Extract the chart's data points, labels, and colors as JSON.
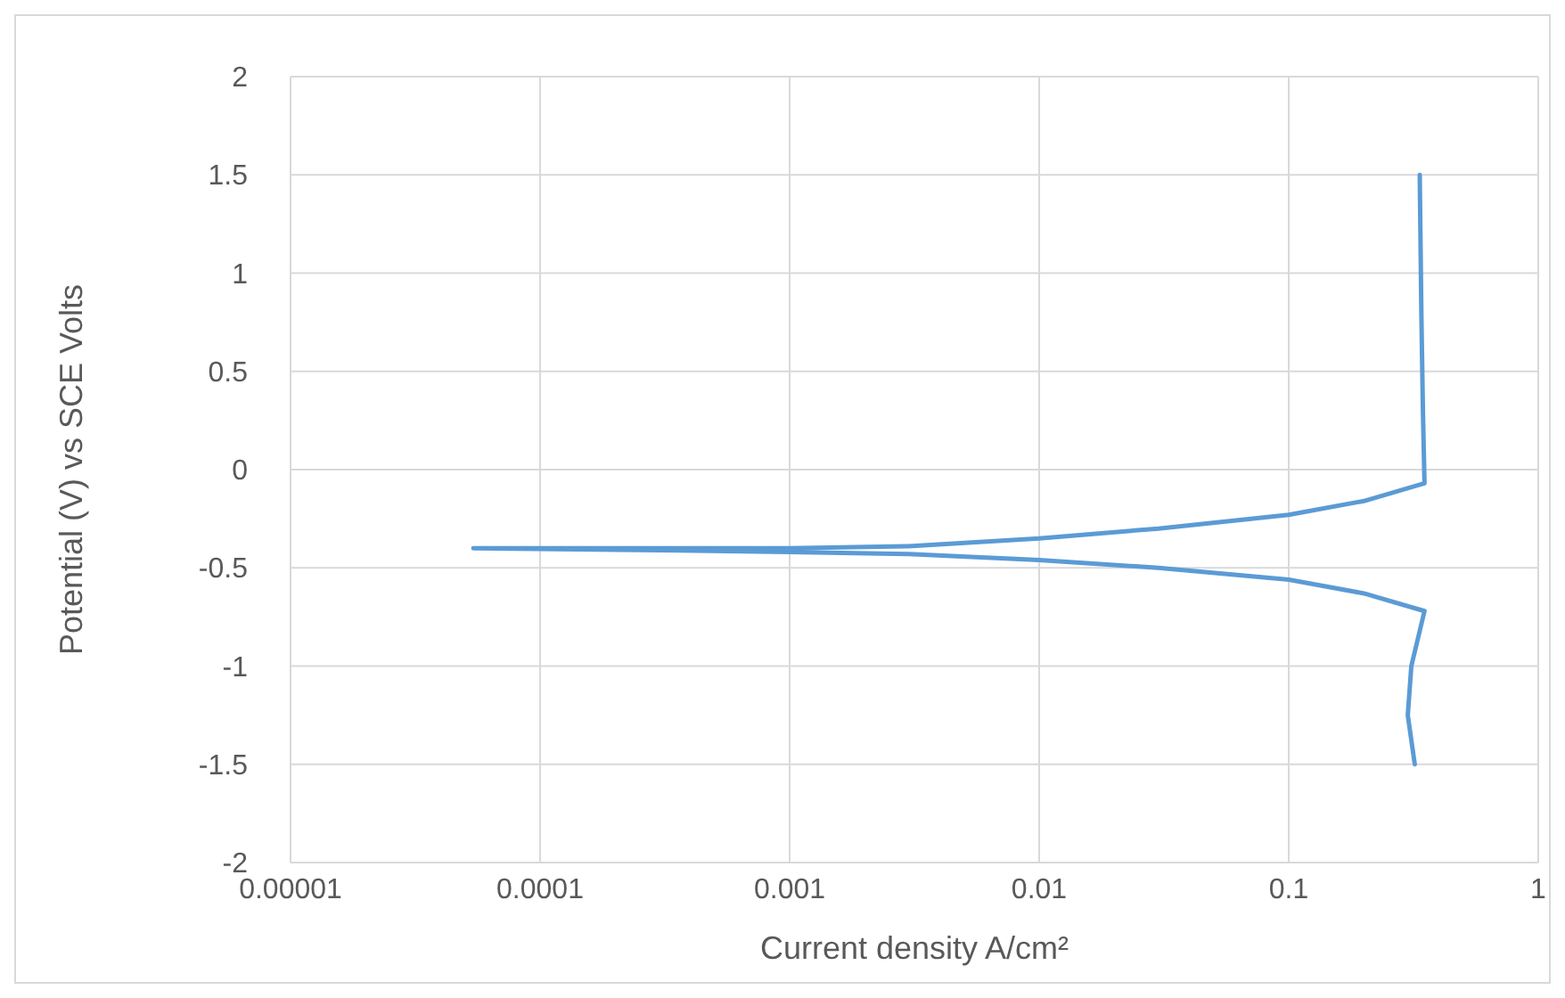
{
  "chart_data": {
    "type": "line",
    "xlabel": "Current  density A/cm²",
    "ylabel": "Potential (V) vs SCE Volts",
    "log": "x",
    "grid": true,
    "marker": "none",
    "line_style": "solid",
    "xlim": [
      1e-05,
      1
    ],
    "xticks": [
      {
        "value": 1e-05,
        "label": "0.00001"
      },
      {
        "value": 0.0001,
        "label": "0.0001"
      },
      {
        "value": 0.001,
        "label": "0.001"
      },
      {
        "value": 0.01,
        "label": "0.01"
      },
      {
        "value": 0.1,
        "label": "0.1"
      },
      1
    ],
    "ylim": [
      -2,
      2
    ],
    "yticks": [
      -2,
      -1.5,
      -1,
      -0.5,
      0,
      0.5,
      1,
      1.5,
      2
    ],
    "series": [
      {
        "color": "#5b9bd5",
        "x": [
          0.32,
          0.3,
          0.31,
          0.35,
          0.2,
          0.1,
          0.03,
          0.01,
          0.003,
          0.001,
          0.0003,
          5.4e-05,
          0.0003,
          0.001,
          0.003,
          0.01,
          0.03,
          0.1,
          0.2,
          0.35,
          0.345,
          0.34,
          0.335
        ],
        "values": [
          -1.5,
          -1.25,
          -1.0,
          -0.72,
          -0.63,
          -0.56,
          -0.5,
          -0.46,
          -0.43,
          -0.42,
          -0.41,
          -0.4,
          -0.4,
          -0.4,
          -0.39,
          -0.35,
          -0.3,
          -0.23,
          -0.16,
          -0.07,
          0.3,
          0.8,
          1.5
        ]
      }
    ]
  }
}
